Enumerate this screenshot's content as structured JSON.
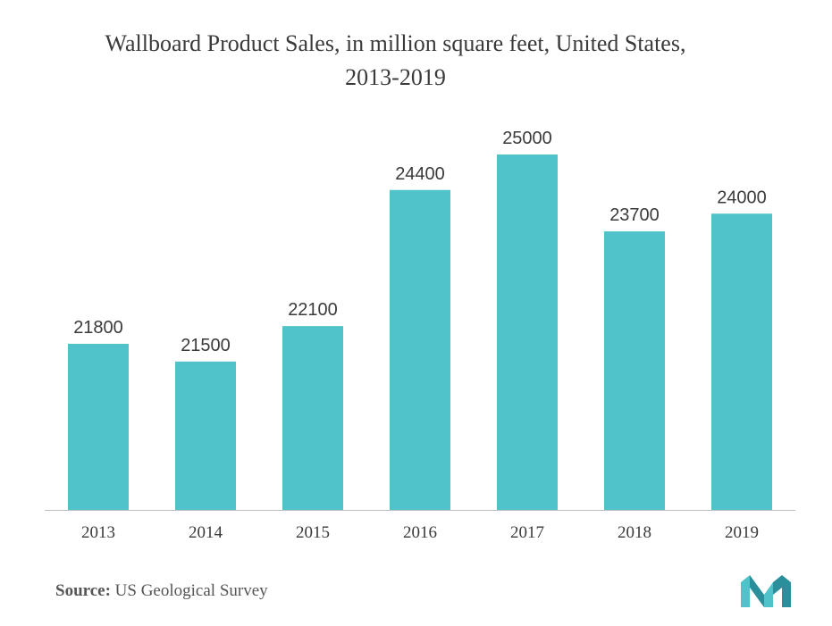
{
  "chart_data": {
    "type": "bar",
    "title_line1": "Wallboard Product Sales, in million square feet, United States,",
    "title_line2": "2013-2019",
    "categories": [
      "2013",
      "2014",
      "2015",
      "2016",
      "2017",
      "2018",
      "2019"
    ],
    "values": [
      21800,
      21500,
      22100,
      24400,
      25000,
      23700,
      24000
    ],
    "data_labels": [
      "21800",
      "21500",
      "22100",
      "24400",
      "25000",
      "23700",
      "24000"
    ],
    "bar_color": "#4fc3c9",
    "axis_color": "#bfbfbf",
    "grid": false,
    "legend": "none"
  },
  "footer": {
    "source_label": "Source:",
    "source_text": " US Geological Survey"
  },
  "logo": {
    "icon": "mordor-intelligence-logo",
    "color": "#4fc3c9"
  }
}
